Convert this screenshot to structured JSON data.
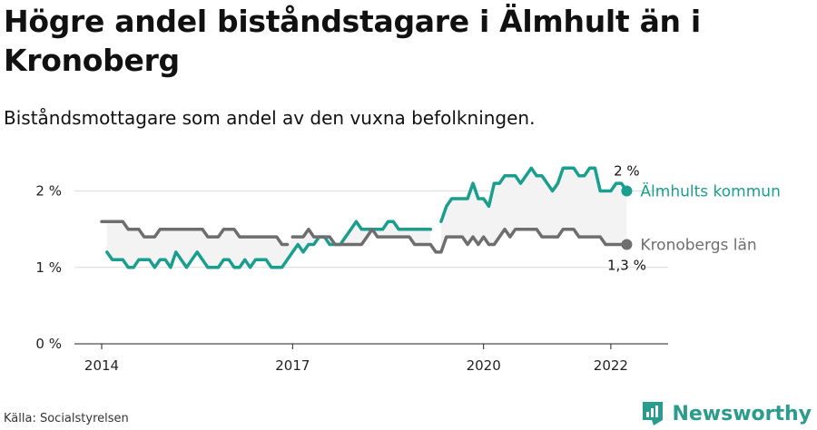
{
  "header": {
    "title": "Högre andel biståndstagare i Älmhult än i Kronoberg",
    "subtitle": "Biståndsmottagare som andel av den vuxna befolkningen."
  },
  "footer": {
    "source": "Källa: Socialstyrelsen",
    "brand": "Newsworthy"
  },
  "colors": {
    "almhult": "#1a9e8e",
    "kronoberg": "#6e6e6e",
    "band": "#f3f3f3",
    "grid": "#dcdcdc"
  },
  "chart_data": {
    "type": "line",
    "title": "Högre andel biståndstagare i Älmhult än i Kronoberg",
    "subtitle": "Biståndsmottagare som andel av den vuxna befolkningen.",
    "xlabel": "",
    "ylabel": "",
    "xlim": [
      2014,
      2022.9
    ],
    "ylim": [
      0,
      2.6
    ],
    "x_ticks": [
      2014,
      2017,
      2020,
      2022
    ],
    "x_tick_labels": [
      "2014",
      "2017",
      "2020",
      "2022"
    ],
    "y_ticks": [
      0,
      1,
      2
    ],
    "y_tick_labels": [
      "0 %",
      "1 %",
      "2 %"
    ],
    "grid": true,
    "series": [
      {
        "name": "Älmhults kommun",
        "color": "#1a9e8e",
        "end_label": "2 %",
        "segments": [
          {
            "x": [
              2014.083,
              2014.167,
              2014.25,
              2014.333,
              2014.417,
              2014.5,
              2014.583,
              2014.667,
              2014.75,
              2014.833,
              2014.917,
              2015.0,
              2015.083,
              2015.167,
              2015.25,
              2015.333,
              2015.417,
              2015.5,
              2015.583,
              2015.667,
              2015.75,
              2015.833,
              2015.917,
              2016.0,
              2016.083,
              2016.167,
              2016.25,
              2016.333,
              2016.417,
              2016.5,
              2016.583,
              2016.667,
              2016.75,
              2016.833,
              2016.917,
              2017.0,
              2017.083,
              2017.167,
              2017.25,
              2017.333,
              2017.417,
              2017.5,
              2017.583,
              2017.667,
              2017.75,
              2017.833,
              2017.917,
              2018.0,
              2018.083,
              2018.167,
              2018.25,
              2018.333,
              2018.417,
              2018.5,
              2018.583,
              2018.667,
              2018.75,
              2018.833,
              2018.917,
              2019.0,
              2019.083,
              2019.167
            ],
            "y": [
              1.2,
              1.1,
              1.1,
              1.1,
              1.0,
              1.0,
              1.1,
              1.1,
              1.1,
              1.0,
              1.1,
              1.1,
              1.0,
              1.2,
              1.1,
              1.0,
              1.1,
              1.2,
              1.1,
              1.0,
              1.0,
              1.0,
              1.1,
              1.1,
              1.0,
              1.0,
              1.1,
              1.0,
              1.1,
              1.1,
              1.1,
              1.0,
              1.0,
              1.0,
              1.1,
              1.2,
              1.3,
              1.2,
              1.3,
              1.3,
              1.4,
              1.4,
              1.3,
              1.3,
              1.3,
              1.4,
              1.5,
              1.6,
              1.5,
              1.5,
              1.5,
              1.5,
              1.5,
              1.6,
              1.6,
              1.5,
              1.5,
              1.5,
              1.5,
              1.5,
              1.5,
              1.5
            ]
          },
          {
            "x": [
              2019.333,
              2019.417,
              2019.5,
              2019.583,
              2019.667,
              2019.75,
              2019.833,
              2019.917,
              2020.0,
              2020.083,
              2020.167,
              2020.25,
              2020.333,
              2020.417,
              2020.5,
              2020.583,
              2020.667,
              2020.75,
              2020.833,
              2020.917,
              2021.0,
              2021.083,
              2021.167,
              2021.25,
              2021.333,
              2021.417,
              2021.5,
              2021.583,
              2021.667,
              2021.75,
              2021.833,
              2021.917,
              2022.0,
              2022.083,
              2022.167,
              2022.25
            ],
            "y": [
              1.6,
              1.8,
              1.9,
              1.9,
              1.9,
              1.9,
              2.1,
              1.9,
              1.9,
              1.8,
              2.1,
              2.1,
              2.2,
              2.2,
              2.2,
              2.1,
              2.2,
              2.3,
              2.2,
              2.2,
              2.1,
              2.0,
              2.1,
              2.3,
              2.3,
              2.3,
              2.2,
              2.2,
              2.3,
              2.3,
              2.0,
              2.0,
              2.0,
              2.1,
              2.1,
              2.0
            ]
          }
        ]
      },
      {
        "name": "Kronobergs län",
        "color": "#6e6e6e",
        "end_label": "1,3 %",
        "segments": [
          {
            "x": [
              2014.0,
              2014.083,
              2014.167,
              2014.25,
              2014.333,
              2014.417,
              2014.5,
              2014.583,
              2014.667,
              2014.75,
              2014.833,
              2014.917,
              2015.0,
              2015.083,
              2015.167,
              2015.25,
              2015.333,
              2015.417,
              2015.5,
              2015.583,
              2015.667,
              2015.75,
              2015.833,
              2015.917,
              2016.0,
              2016.083,
              2016.167,
              2016.25,
              2016.333,
              2016.417,
              2016.5,
              2016.583,
              2016.667,
              2016.75,
              2016.833,
              2016.917
            ],
            "y": [
              1.6,
              1.6,
              1.6,
              1.6,
              1.6,
              1.5,
              1.5,
              1.5,
              1.4,
              1.4,
              1.4,
              1.5,
              1.5,
              1.5,
              1.5,
              1.5,
              1.5,
              1.5,
              1.5,
              1.5,
              1.4,
              1.4,
              1.4,
              1.5,
              1.5,
              1.5,
              1.4,
              1.4,
              1.4,
              1.4,
              1.4,
              1.4,
              1.4,
              1.4,
              1.3,
              1.3
            ]
          },
          {
            "x": [
              2017.0,
              2017.083,
              2017.167,
              2017.25,
              2017.333,
              2017.417,
              2017.5,
              2017.583,
              2017.667,
              2017.75,
              2017.833,
              2017.917,
              2018.0,
              2018.083,
              2018.167,
              2018.25,
              2018.333,
              2018.417,
              2018.5,
              2018.583,
              2018.667,
              2018.75,
              2018.833,
              2018.917,
              2019.0,
              2019.083,
              2019.167,
              2019.25,
              2019.333,
              2019.417,
              2019.5,
              2019.583,
              2019.667,
              2019.75,
              2019.833,
              2019.917,
              2020.0,
              2020.083,
              2020.167,
              2020.25,
              2020.333,
              2020.417,
              2020.5,
              2020.583,
              2020.667,
              2020.75,
              2020.833,
              2020.917,
              2021.0,
              2021.083,
              2021.167,
              2021.25,
              2021.333,
              2021.417,
              2021.5,
              2021.583,
              2021.667,
              2021.75,
              2021.833,
              2021.917,
              2022.0,
              2022.083,
              2022.167,
              2022.25
            ],
            "y": [
              1.4,
              1.4,
              1.4,
              1.5,
              1.4,
              1.4,
              1.4,
              1.4,
              1.3,
              1.3,
              1.3,
              1.3,
              1.3,
              1.3,
              1.4,
              1.5,
              1.4,
              1.4,
              1.4,
              1.4,
              1.4,
              1.4,
              1.4,
              1.3,
              1.3,
              1.3,
              1.3,
              1.2,
              1.2,
              1.4,
              1.4,
              1.4,
              1.4,
              1.3,
              1.4,
              1.3,
              1.4,
              1.3,
              1.3,
              1.4,
              1.5,
              1.4,
              1.5,
              1.5,
              1.5,
              1.5,
              1.5,
              1.4,
              1.4,
              1.4,
              1.4,
              1.5,
              1.5,
              1.5,
              1.4,
              1.4,
              1.4,
              1.4,
              1.4,
              1.3,
              1.3,
              1.3,
              1.3,
              1.3
            ]
          }
        ]
      }
    ]
  }
}
